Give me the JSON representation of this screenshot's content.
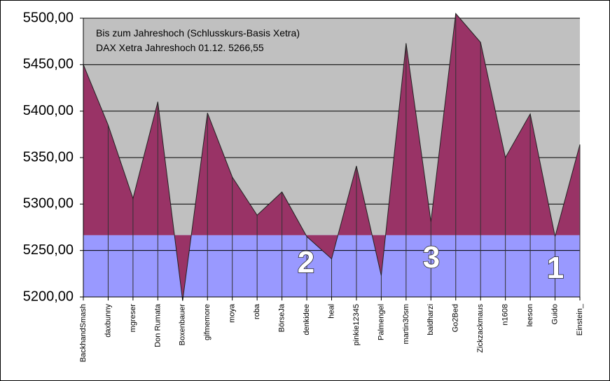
{
  "chart_data": {
    "type": "area",
    "title": "Bis zum Jahreshoch (Schlusskurs-Basis Xetra)",
    "subtitle": "DAX Xetra Jahreshoch 01.12.  5266,55",
    "categories": [
      "BackhandSmash",
      "daxbunny",
      "mgreser",
      "Don Rumata",
      "Boxenbauer",
      "gifmemore",
      "moya",
      "roba",
      "BörseJa",
      "denkidee",
      "heal",
      "pinkie12345",
      "Palmengel",
      "martin30sm",
      "baldharzi",
      "Go2Bed",
      "Zickzackmaus",
      "n1608",
      "leeson",
      "Guido",
      "Einstein_"
    ],
    "series": [
      {
        "color": "#993366",
        "values": [
          5450,
          5385,
          5306,
          5410,
          5196,
          5398,
          5329,
          5288,
          5313,
          5265,
          5241,
          5341,
          5223,
          5473,
          5281,
          5505,
          5474,
          5350,
          5397,
          5265,
          5364
        ]
      }
    ],
    "threshold": 5266.55,
    "threshold_color": "#9999ff",
    "background": "#c0c0c0",
    "ylim": [
      5200,
      5500
    ],
    "yticks": [
      {
        "value": 5200,
        "label": "5200,00"
      },
      {
        "value": 5250,
        "label": "5250,00"
      },
      {
        "value": 5300,
        "label": "5300,00"
      },
      {
        "value": 5350,
        "label": "5350,00"
      },
      {
        "value": 5400,
        "label": "5400,00"
      },
      {
        "value": 5450,
        "label": "5450,00"
      },
      {
        "value": 5500,
        "label": "5500,00"
      }
    ],
    "grid": true,
    "annotations": [
      "2",
      "3",
      "1"
    ]
  }
}
